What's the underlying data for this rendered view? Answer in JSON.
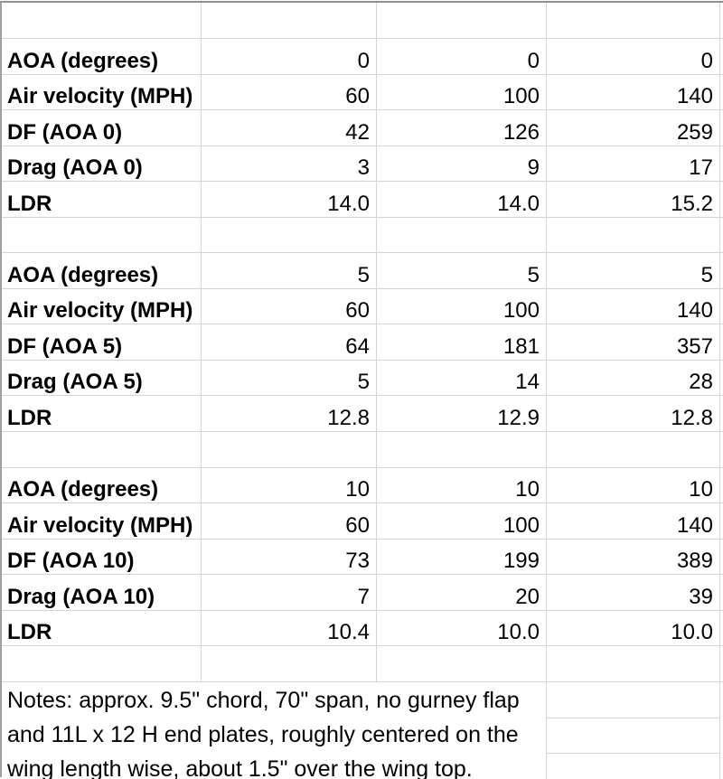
{
  "sheet": {
    "type": "spreadsheet-table",
    "rows": [
      {
        "label": "",
        "values": [
          "",
          "",
          ""
        ]
      },
      {
        "label": "AOA (degrees)",
        "values": [
          "0",
          "0",
          "0"
        ]
      },
      {
        "label": "Air velocity (MPH)",
        "values": [
          "60",
          "100",
          "140"
        ]
      },
      {
        "label": "DF (AOA 0)",
        "values": [
          "42",
          "126",
          "259"
        ]
      },
      {
        "label": "Drag (AOA 0)",
        "values": [
          "3",
          "9",
          "17"
        ]
      },
      {
        "label": "LDR",
        "values": [
          "14.0",
          "14.0",
          "15.2"
        ]
      },
      {
        "label": "",
        "values": [
          "",
          "",
          ""
        ]
      },
      {
        "label": "AOA (degrees)",
        "values": [
          "5",
          "5",
          "5"
        ]
      },
      {
        "label": "Air velocity (MPH)",
        "values": [
          "60",
          "100",
          "140"
        ]
      },
      {
        "label": "DF (AOA 5)",
        "values": [
          "64",
          "181",
          "357"
        ]
      },
      {
        "label": "Drag (AOA 5)",
        "values": [
          "5",
          "14",
          "28"
        ]
      },
      {
        "label": "LDR",
        "values": [
          "12.8",
          "12.9",
          "12.8"
        ]
      },
      {
        "label": "",
        "values": [
          "",
          "",
          ""
        ]
      },
      {
        "label": "AOA (degrees)",
        "values": [
          "10",
          "10",
          "10"
        ]
      },
      {
        "label": "Air velocity (MPH)",
        "values": [
          "60",
          "100",
          "140"
        ]
      },
      {
        "label": "DF (AOA 10)",
        "values": [
          "73",
          "199",
          "389"
        ]
      },
      {
        "label": "Drag (AOA 10)",
        "values": [
          "7",
          "20",
          "39"
        ]
      },
      {
        "label": "LDR",
        "values": [
          "10.4",
          "10.0",
          "10.0"
        ]
      },
      {
        "label": "",
        "values": [
          "",
          "",
          ""
        ]
      }
    ],
    "notes": {
      "lines": [
        "Notes: approx. 9.5\" chord, 70\" span, no gurney flap",
        "and 11L x 12 H end plates, roughly centered on the",
        "wing length wise, about 1.5\" over the wing top."
      ]
    },
    "colors": {
      "background": "#ffffff",
      "gridline": "#d4d4d4",
      "outer_border": "#909090",
      "text": "#000000"
    }
  }
}
